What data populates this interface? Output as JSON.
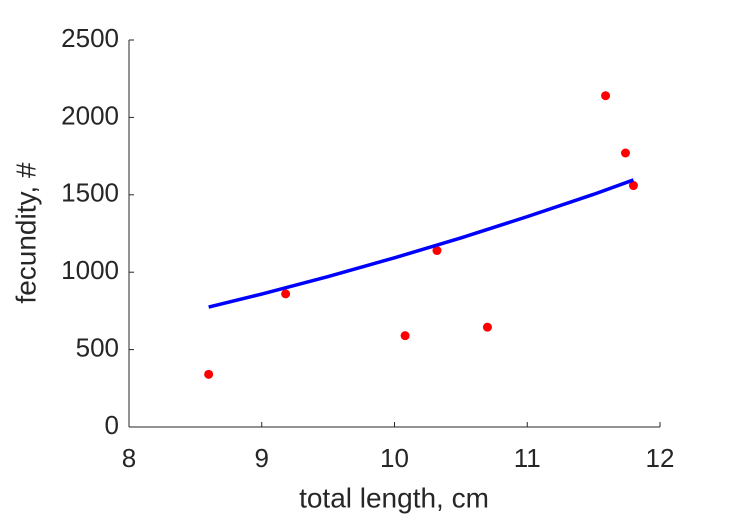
{
  "chart_data": {
    "type": "scatter",
    "xlabel": "total length, cm",
    "ylabel": "fecundity, #",
    "xlim": [
      8,
      12
    ],
    "ylim": [
      0,
      2500
    ],
    "xticks": [
      8,
      9,
      10,
      11,
      12
    ],
    "yticks": [
      0,
      500,
      1000,
      1500,
      2000,
      2500
    ],
    "grid": false,
    "series": [
      {
        "type": "scatter",
        "color": "#ff0000",
        "x": [
          8.6,
          9.18,
          10.08,
          10.32,
          10.7,
          11.59,
          11.74,
          11.8
        ],
        "values": [
          340,
          860,
          590,
          1140,
          645,
          2140,
          1770,
          1560
        ]
      },
      {
        "type": "line",
        "color": "#0000ff",
        "x": [
          8.6,
          9,
          9.5,
          10,
          10.5,
          11,
          11.5,
          11.8
        ],
        "values": [
          775,
          859,
          972,
          1093,
          1221,
          1359,
          1503,
          1596
        ]
      }
    ]
  }
}
